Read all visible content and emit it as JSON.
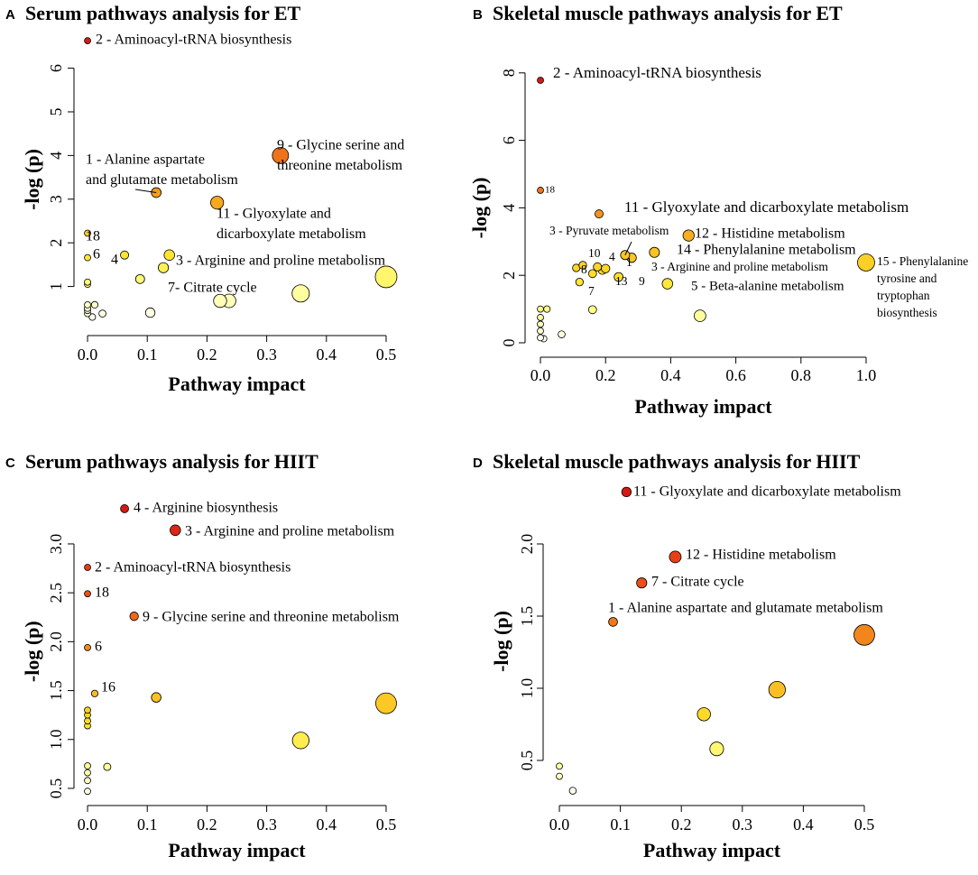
{
  "chart_data": [
    {
      "type": "scatter",
      "panel": "A",
      "title": "Serum pathways analysis for ET",
      "xlabel": "Pathway impact",
      "ylabel": "-log (p)",
      "xlim": [
        -0.02,
        0.52
      ],
      "ylim": [
        0.2,
        6.7
      ],
      "xticks": [
        {
          "value": 0,
          "label": "0.0"
        },
        0.1,
        0.2,
        0.3,
        0.4,
        0.5
      ],
      "yticks": [
        1,
        2,
        3,
        4,
        5,
        6
      ],
      "x": [
        0,
        0.323,
        0.115,
        0.217,
        0,
        0,
        0.062,
        0.137,
        0.127,
        0.088,
        0.5,
        0.357,
        0.222,
        0.237,
        0,
        0,
        0.105,
        0.012,
        0,
        0,
        0,
        0,
        0.025,
        0.008
      ],
      "y": [
        6.63,
        4.0,
        3.15,
        2.92,
        2.22,
        1.66,
        1.72,
        1.72,
        1.43,
        1.17,
        1.22,
        0.84,
        0.67,
        0.67,
        1.1,
        1.05,
        0.4,
        0.58,
        0.58,
        0.5,
        0.45,
        0.38,
        0.38,
        0.3
      ],
      "labels": [
        [
          "2 - Aminoacyl-tRNA biosynthesis"
        ],
        [
          "9 - Glycine serine and",
          "threonine metabolism"
        ],
        [
          "1 - Alanine aspartate",
          "and glutamate metabolism"
        ],
        [
          "11 - Glyoxylate and",
          "dicarboxylate metabolism"
        ],
        [
          "18"
        ],
        [
          "6"
        ],
        [
          "4"
        ],
        [
          "3 - Arginine and proline metabolism"
        ],
        [
          "7- Citrate cycle"
        ],
        null,
        null,
        null,
        null,
        null,
        null,
        null,
        null,
        null,
        null,
        null,
        null,
        null,
        null,
        null
      ]
    },
    {
      "type": "scatter",
      "panel": "B",
      "title": "Skeletal muscle pathways analysis for ET",
      "xlabel": "Pathway impact",
      "ylabel": "-log (p)",
      "xlim": [
        -0.03,
        1.03
      ],
      "ylim": [
        0,
        8
      ],
      "xticks": [
        {
          "value": 0,
          "label": "0.0"
        },
        0.2,
        0.4,
        0.6,
        0.8,
        {
          "value": 1,
          "label": "1.0"
        }
      ],
      "yticks": [
        0,
        2,
        4,
        6,
        8
      ],
      "x": [
        0,
        0,
        0.18,
        0.455,
        0.35,
        0.26,
        0.28,
        1.0,
        0.13,
        0.175,
        0.2,
        0.11,
        0.19,
        0.24,
        0.16,
        0.39,
        0.12,
        0.16,
        0.49,
        0.065,
        0.02,
        0,
        0,
        0,
        0,
        0,
        0.01
      ],
      "y": [
        7.78,
        4.52,
        3.82,
        3.18,
        2.68,
        2.6,
        2.52,
        2.38,
        2.3,
        2.25,
        2.2,
        2.22,
        2.15,
        1.95,
        2.05,
        1.75,
        1.8,
        0.98,
        0.8,
        0.25,
        1.0,
        1.0,
        0.75,
        0.55,
        0.35,
        0.15,
        0.12
      ],
      "labels": [
        [
          "2 - Aminoacyl-tRNA biosynthesis"
        ],
        [
          "18"
        ],
        [
          "11 - Glyoxylate and dicarboxylate metabolism"
        ],
        [
          "12 - Histidine metabolism"
        ],
        [
          "14 - Phenylalanine metabolism"
        ],
        [
          "3 - Pyruvate metabolism"
        ],
        null,
        [
          "15 - Phenylalanine",
          "tyrosine and",
          "tryptophan",
          "biosynthesis"
        ],
        [
          "10"
        ],
        [
          "4"
        ],
        [
          "1"
        ],
        [
          "8"
        ],
        [
          "3 - Arginine and proline metabolism"
        ],
        [
          "9"
        ],
        [
          "13"
        ],
        [
          "5 - Beta-alanine metabolism"
        ],
        [
          "7"
        ],
        null,
        null,
        null,
        null,
        null,
        null,
        null,
        null,
        null,
        null
      ]
    },
    {
      "type": "scatter",
      "panel": "C",
      "title": "Serum pathways analysis for HIIT",
      "xlabel": "Pathway impact",
      "ylabel": "-log (p)",
      "xlim": [
        -0.02,
        0.52
      ],
      "ylim": [
        0.4,
        3.4
      ],
      "xticks": [
        {
          "value": 0,
          "label": "0.0"
        },
        0.1,
        0.2,
        0.3,
        0.4,
        0.5
      ],
      "yticks": [
        0.5,
        {
          "value": 1,
          "label": "1.0"
        },
        1.5,
        {
          "value": 2,
          "label": "2.0"
        },
        2.5,
        {
          "value": 3,
          "label": "3.0"
        }
      ],
      "x": [
        0.062,
        0.147,
        0,
        0,
        0.078,
        0,
        0.012,
        0.115,
        0.5,
        0.357,
        0,
        0,
        0,
        0,
        0.033,
        0,
        0,
        0,
        0
      ],
      "y": [
        3.36,
        3.14,
        2.76,
        2.49,
        2.26,
        1.94,
        1.47,
        1.43,
        1.37,
        0.99,
        1.3,
        1.25,
        1.19,
        1.14,
        0.72,
        0.73,
        0.66,
        0.58,
        0.47
      ],
      "labels": [
        [
          "4 - Arginine biosynthesis"
        ],
        [
          "3 - Arginine and proline metabolism"
        ],
        [
          "2 - Aminoacyl-tRNA biosynthesis"
        ],
        [
          "18"
        ],
        [
          "9 - Glycine serine and threonine metabolism"
        ],
        [
          "6"
        ],
        [
          "16"
        ],
        null,
        null,
        null,
        null,
        null,
        null,
        null,
        null,
        null,
        null,
        null,
        null
      ]
    },
    {
      "type": "scatter",
      "panel": "D",
      "title": "Skeletal muscle pathways analysis for HIIT",
      "xlabel": "Pathway impact",
      "ylabel": "-log (p)",
      "xlim": [
        -0.02,
        0.52
      ],
      "ylim": [
        0.25,
        2.4
      ],
      "xticks": [
        {
          "value": 0,
          "label": "0.0"
        },
        0.1,
        0.2,
        0.3,
        0.4,
        0.5
      ],
      "yticks": [
        0.5,
        {
          "value": 1,
          "label": "1.0"
        },
        1.5,
        {
          "value": 2,
          "label": "2.0"
        }
      ],
      "x": [
        0.11,
        0.19,
        0.135,
        0.088,
        0.5,
        0.357,
        0.237,
        0.258,
        0,
        0,
        0.022
      ],
      "y": [
        2.36,
        1.91,
        1.73,
        1.46,
        1.37,
        0.99,
        0.82,
        0.58,
        0.46,
        0.39,
        0.29
      ],
      "labels": [
        [
          "11 - Glyoxylate and dicarboxylate metabolism"
        ],
        [
          "12 - Histidine metabolism"
        ],
        [
          "7 - Citrate cycle"
        ],
        [
          "1 - Alanine aspartate and glutamate metabolism"
        ],
        null,
        null,
        null,
        null,
        null,
        null,
        null
      ]
    }
  ]
}
